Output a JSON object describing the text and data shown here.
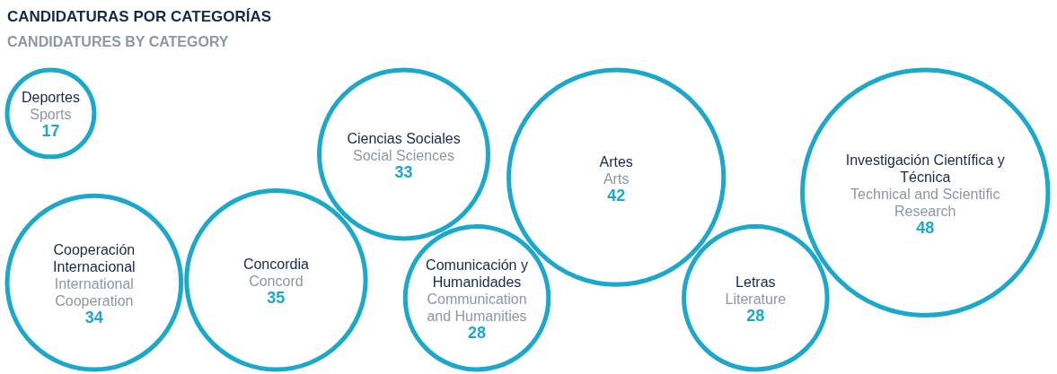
{
  "chart_data": {
    "type": "other",
    "title": "CANDIDATURAS POR CATEGORÍAS",
    "subtitle": "CANDIDATURES BY CATEGORY",
    "categories": [
      "Cooperación Internacional",
      "Deportes",
      "Concordia",
      "Ciencias Sociales",
      "Comunicación y Humanidades",
      "Artes",
      "Letras",
      "Investigación Científica y Técnica"
    ],
    "annotations": [
      "International Cooperation",
      "Sports",
      "Concord",
      "Social Sciences",
      "Communication and Humanities",
      "Arts",
      "Literature",
      "Technical and Scientific Research"
    ],
    "values": [
      34,
      17,
      35,
      33,
      28,
      42,
      28,
      48
    ],
    "color": "#1aa8cc",
    "data_labels": true
  }
}
